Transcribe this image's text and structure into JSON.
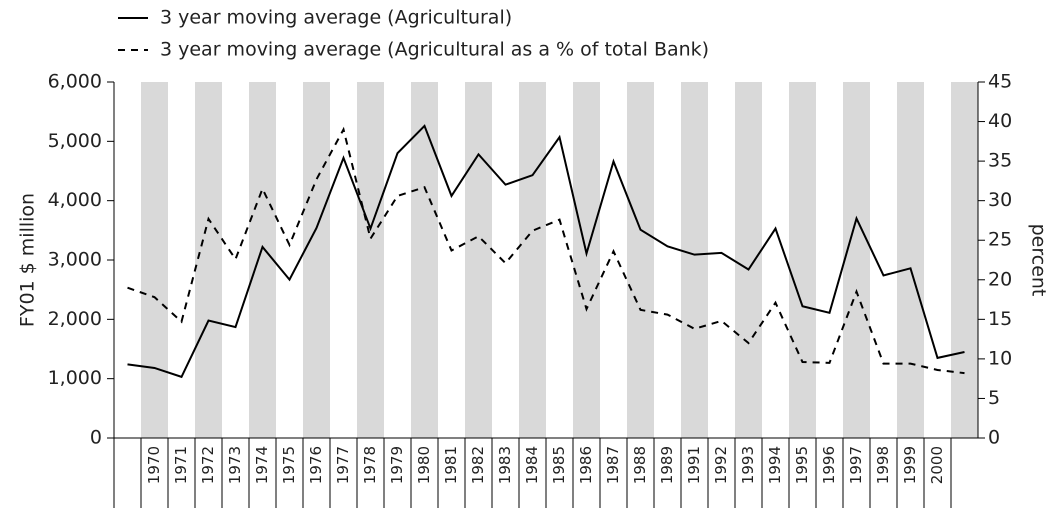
{
  "chart_data": {
    "type": "line",
    "categories": [
      null,
      "1970",
      "1971",
      "1972",
      "1973",
      "1974",
      "1975",
      "1976",
      "1977",
      "1978",
      "1979",
      "1980",
      "1981",
      "1982",
      "1983",
      "1984",
      "1985",
      "1986",
      "1987",
      "1988",
      "1989",
      "1991",
      "1992",
      "1993",
      "1994",
      "1995",
      "1996",
      "1997",
      "1998",
      "1999",
      "2000",
      null
    ],
    "series": [
      {
        "name": "3 year moving average (Agricultural)",
        "color": "#000000",
        "dash": false,
        "values": [
          1240,
          1180,
          1030,
          1980,
          1870,
          3220,
          2670,
          3540,
          4720,
          3530,
          4800,
          5260,
          4080,
          4780,
          4270,
          4430,
          5070,
          3110,
          4660,
          3510,
          3230,
          3090,
          3120,
          2840,
          3530,
          2220,
          2110,
          3700,
          2740,
          2860,
          1350,
          1450
        ]
      },
      {
        "name": "3 year moving average (Agricultural as a % of total Bank)",
        "color": "#000000",
        "dash": true,
        "axis": "y2",
        "values": [
          19.0,
          17.8,
          14.7,
          27.7,
          22.6,
          31.5,
          24.4,
          32.7,
          39.0,
          25.2,
          30.6,
          31.7,
          23.7,
          25.5,
          22.1,
          26.2,
          27.6,
          16.3,
          23.6,
          16.2,
          15.6,
          13.8,
          14.8,
          12.0,
          17.1,
          9.6,
          9.5,
          18.5,
          9.4,
          9.4,
          8.6,
          8.2
        ]
      }
    ],
    "ylabel": "FY01 $ million",
    "y2label": "percent",
    "ylim": [
      0,
      6000
    ],
    "yticks": [
      0,
      {
        "value": 1000,
        "label": "1,000"
      },
      {
        "value": 2000,
        "label": "2,000"
      },
      {
        "value": 3000,
        "label": "3,000"
      },
      {
        "value": 4000,
        "label": "4,000"
      },
      {
        "value": 5000,
        "label": "5,000"
      },
      {
        "value": 6000,
        "label": "6,000"
      }
    ],
    "y2lim": [
      0,
      45
    ],
    "y2ticks": [
      0,
      5,
      10,
      15,
      20,
      25,
      30,
      35,
      40,
      45
    ],
    "band_color": "#d9d9d9"
  }
}
